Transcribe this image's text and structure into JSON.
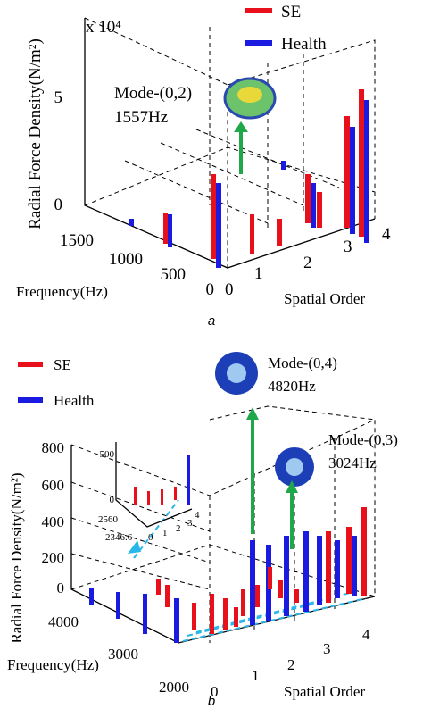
{
  "figure_a": {
    "scale_label": "x 10⁴",
    "legend": [
      "SE",
      "Health"
    ],
    "y_label": "Radial Force Density(N/m²)",
    "z_ticks": [
      "5",
      "0"
    ],
    "frequency_ticks": [
      "1500",
      "1000",
      "500",
      "0"
    ],
    "spatial_ticks": [
      "0",
      "1",
      "2",
      "3",
      "4"
    ],
    "x_label": "Frequency(Hz)",
    "spatial_label": "Spatial Order",
    "annotation": [
      "Mode-(0,2)",
      "1557Hz"
    ],
    "caption": "a"
  },
  "figure_b": {
    "legend": [
      "SE",
      "Health"
    ],
    "y_label": "Radial Force Density(N/m²)",
    "z_ticks": [
      "800",
      "600",
      "400",
      "200",
      "0"
    ],
    "frequency_ticks": [
      "4000",
      "3000",
      "2000"
    ],
    "spatial_ticks": [
      "0",
      "1",
      "2",
      "3",
      "4"
    ],
    "x_label": "Frequency(Hz)",
    "spatial_label": "Spatial Order",
    "annotation_1": [
      "Mode-(0,4)",
      "4820Hz"
    ],
    "annotation_2": [
      "Mode-(0,3)",
      "3024Hz"
    ],
    "inset_z_ticks": [
      "500",
      "0"
    ],
    "inset_frequency_ticks": [
      "2560",
      "2346.6"
    ],
    "inset_spatial_ticks": [
      "0",
      "1",
      "2",
      "3",
      "4"
    ],
    "caption": "b"
  }
}
